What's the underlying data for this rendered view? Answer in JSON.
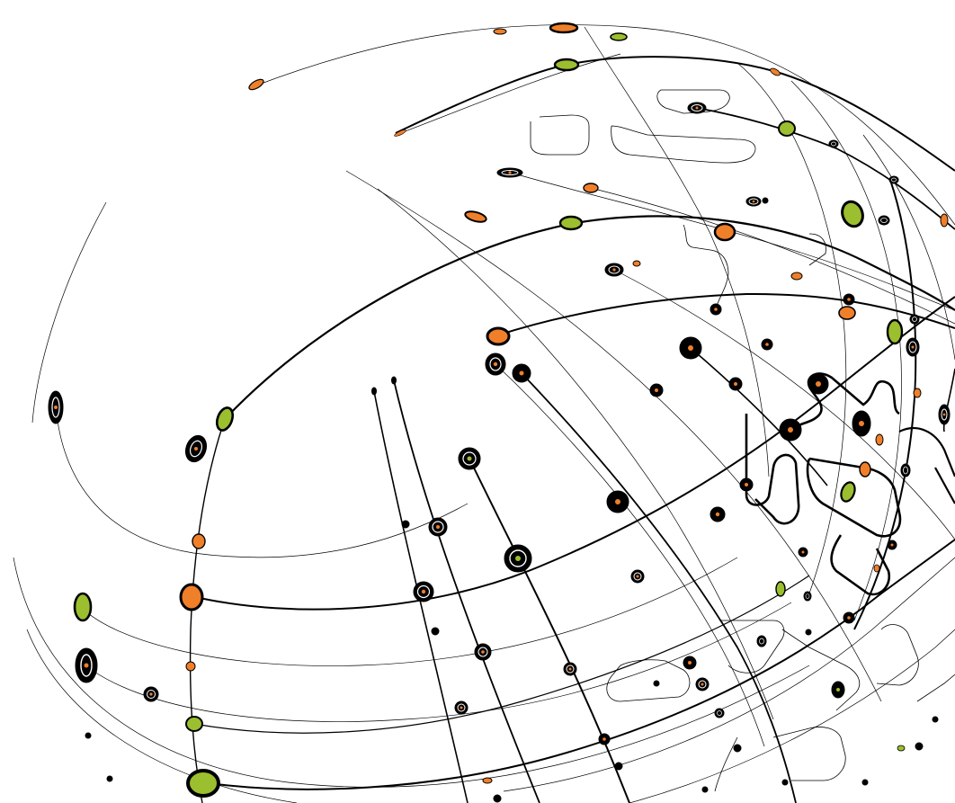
{
  "image": {
    "subject": "network-globe-illustration",
    "background_color": "#ffffff"
  },
  "palette": {
    "line": "#000000",
    "node_orange": "#f07f2a",
    "node_green": "#9bbf2e",
    "node_black": "#000000",
    "node_ring": "#ffffff"
  },
  "node_kinds": [
    "orange",
    "green",
    "black-orange",
    "black-green",
    "ring-orange"
  ]
}
